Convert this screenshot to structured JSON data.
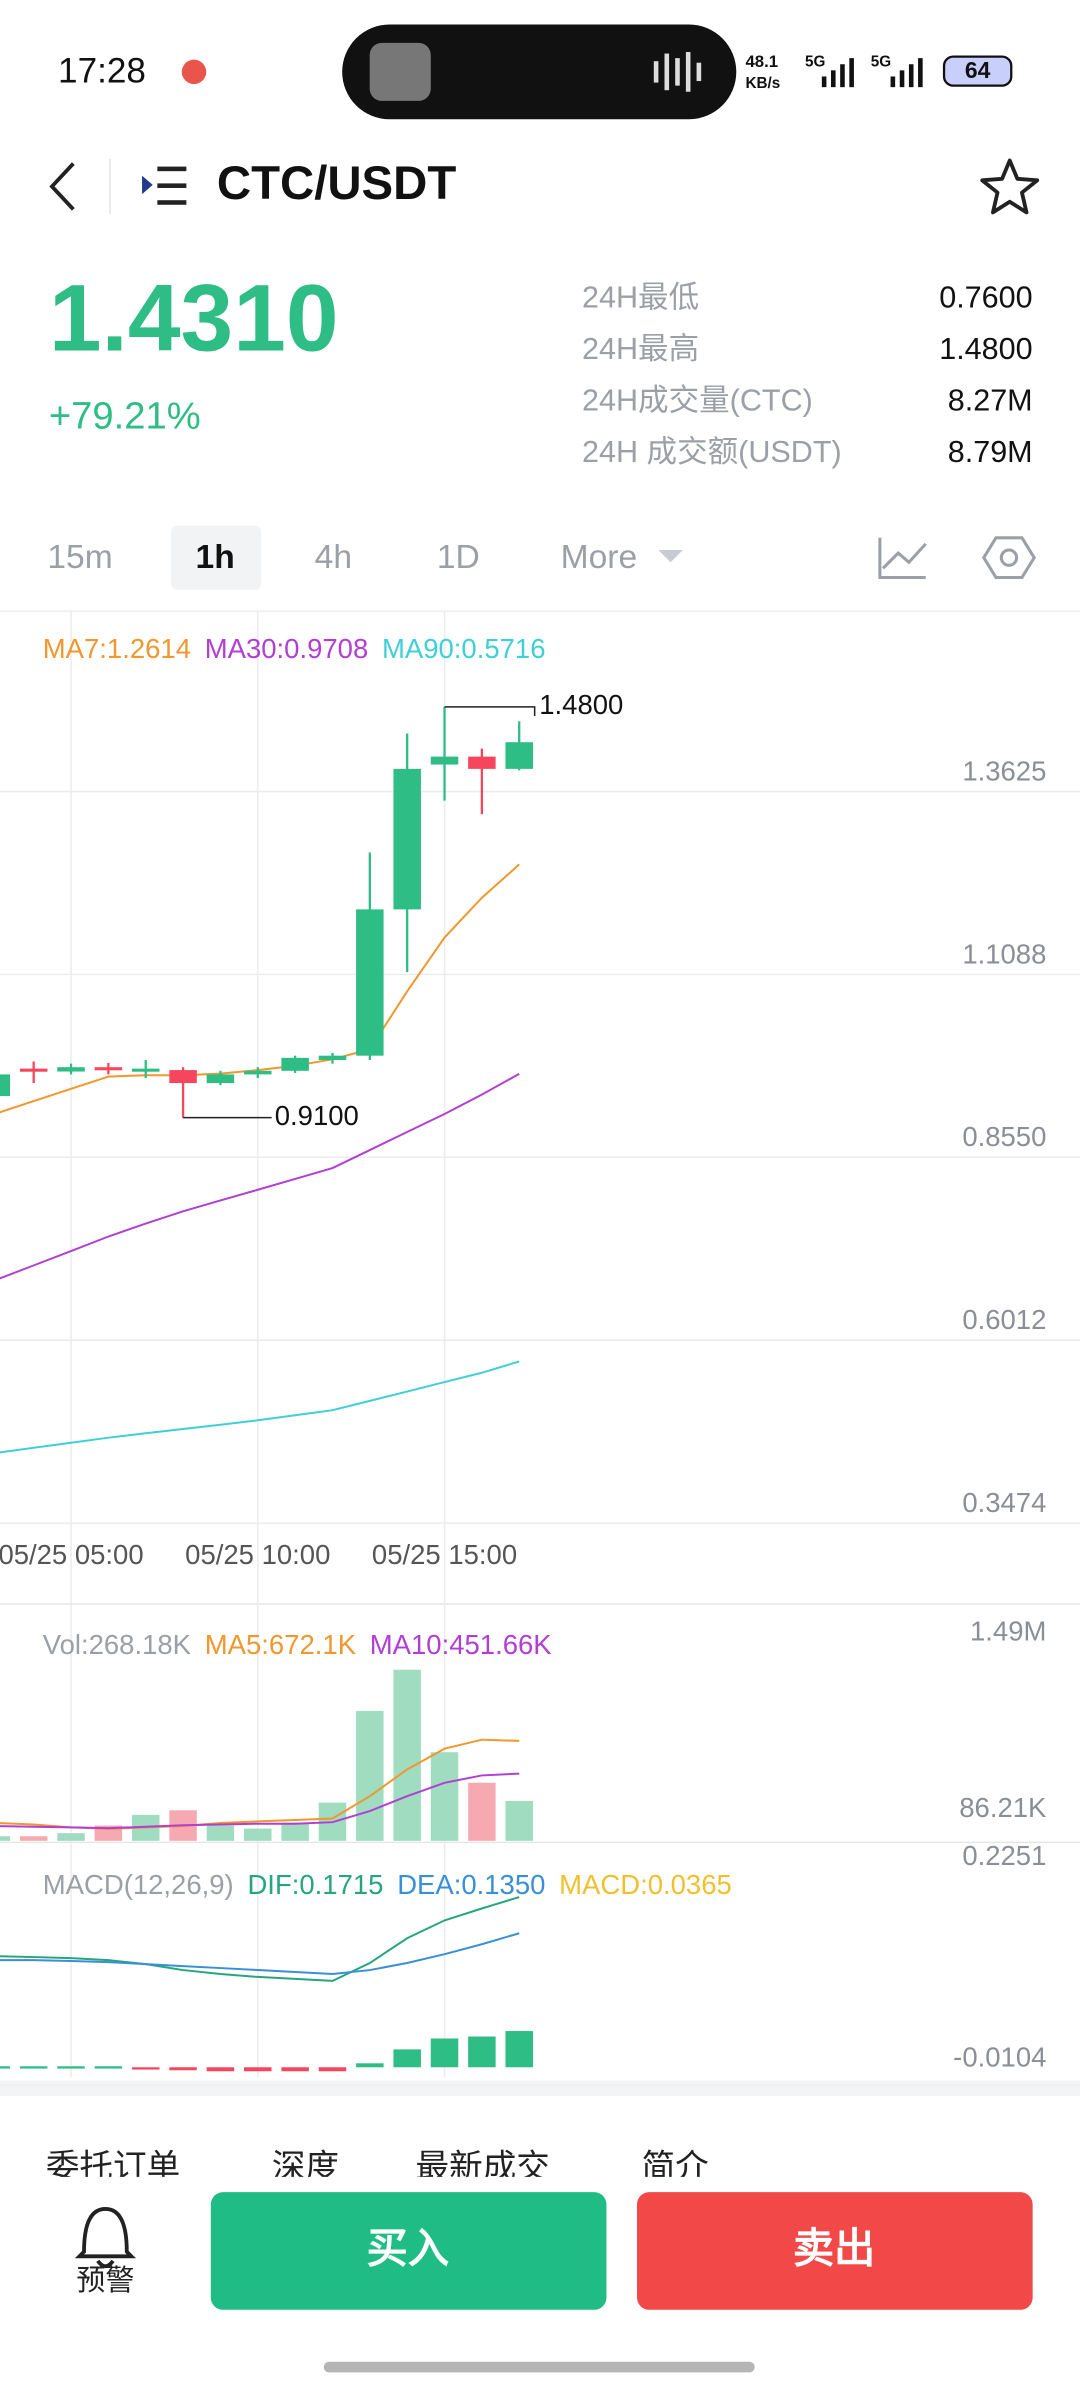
{
  "status_bar": {
    "time": "17:28",
    "speed": "48.1",
    "speed_unit": "KB/s",
    "network_1": "5G",
    "network_2": "5G",
    "battery": "64"
  },
  "header": {
    "pair": "CTC/USDT"
  },
  "ticker": {
    "price": "1.4310",
    "change": "+79.21%",
    "stats": [
      [
        "24H最低",
        "0.7600"
      ],
      [
        "24H最高",
        "1.4800"
      ],
      [
        "24H成交量(CTC)",
        "8.27M"
      ],
      [
        "24H 成交额(USDT)",
        "8.79M"
      ]
    ]
  },
  "timeframes": [
    "15m",
    "1h",
    "4h",
    "1D",
    "More"
  ],
  "chart_data": [
    {
      "type": "candlestick",
      "categories": [
        null,
        null,
        "05/25 05:00",
        null,
        null,
        null,
        null,
        "05/25 10:00",
        null,
        null,
        null,
        null,
        "05/25 15:00",
        null,
        null
      ],
      "open": [
        0.94,
        0.978,
        0.974,
        0.98,
        0.975,
        0.976,
        0.958,
        0.97,
        0.975,
        0.99,
        0.996,
        1.199,
        1.4,
        1.411,
        1.394
      ],
      "high": [
        0.975,
        0.988,
        0.985,
        0.986,
        0.99,
        0.98,
        0.975,
        0.98,
        0.996,
        1.0,
        1.278,
        1.443,
        1.48,
        1.422,
        1.46
      ],
      "low": [
        0.935,
        0.958,
        0.97,
        0.97,
        0.965,
        0.91,
        0.955,
        0.965,
        0.972,
        0.985,
        0.99,
        1.112,
        1.35,
        1.331,
        1.392
      ],
      "close": [
        0.97,
        0.974,
        0.98,
        0.976,
        0.978,
        0.958,
        0.97,
        0.975,
        0.993,
        0.996,
        1.199,
        1.394,
        1.411,
        1.394,
        1.431
      ],
      "up_color": "#2ebd85",
      "down_color": "#f6465d",
      "high_label": "1.4800",
      "low_label": "0.9100",
      "series": [
        {
          "name": "MA7:1.2614",
          "color": "#f0972e",
          "values": [
            0.916,
            0.933,
            0.95,
            0.967,
            0.969,
            0.969,
            0.971,
            0.976,
            0.982,
            0.991,
            1.005,
            1.085,
            1.16,
            1.215,
            1.2614
          ]
        },
        {
          "name": "MA30:0.9708",
          "color": "#b23fd4",
          "values": [
            0.685,
            0.705,
            0.725,
            0.745,
            0.763,
            0.78,
            0.795,
            0.81,
            0.825,
            0.84,
            0.865,
            0.89,
            0.915,
            0.942,
            0.9708
          ]
        },
        {
          "name": "MA90:0.5716",
          "color": "#3fcfd6",
          "values": [
            0.445,
            0.452,
            0.459,
            0.466,
            0.472,
            0.478,
            0.484,
            0.49,
            0.497,
            0.504,
            0.517,
            0.53,
            0.543,
            0.556,
            0.5716
          ]
        }
      ],
      "ylim": [
        0.3474,
        1.6129
      ],
      "yticks": [
        1.3625,
        1.1088,
        {
          "value": 0.855,
          "label": "0.8550"
        },
        0.6012,
        0.3474
      ],
      "grid": true
    },
    {
      "type": "bar",
      "title": "Vol:268.18K",
      "values": [
        30800,
        30800,
        51400,
        102800,
        174700,
        205500,
        102800,
        82200,
        123300,
        256900,
        873400,
        1151000,
        596000,
        390500,
        268180
      ],
      "bar_colors": [
        "#9fdcc0",
        "#f7a9b2",
        "#9fdcc0",
        "#f7a9b2",
        "#9fdcc0",
        "#f7a9b2",
        "#9fdcc0",
        "#9fdcc0",
        "#9fdcc0",
        "#9fdcc0",
        "#9fdcc0",
        "#9fdcc0",
        "#9fdcc0",
        "#f7a9b2",
        "#9fdcc0"
      ],
      "series": [
        {
          "name": "MA5:672.1K",
          "color": "#f0972e",
          "values": [
            120000,
            110000,
            90000,
            80000,
            90000,
            100000,
            120000,
            130000,
            140000,
            150000,
            300000,
            480000,
            620000,
            680000,
            672100
          ]
        },
        {
          "name": "MA10:451.66K",
          "color": "#b23fd4",
          "values": [
            100000,
            95000,
            90000,
            85000,
            95000,
            105000,
            110000,
            115000,
            115000,
            125000,
            200000,
            300000,
            390000,
            440000,
            451660
          ]
        }
      ],
      "ylim": [
        0,
        1490000
      ],
      "yticks": [
        {
          "value": 1490000,
          "label": "1.49M"
        },
        {
          "value": 86210,
          "label": "86.21K"
        }
      ]
    },
    {
      "type": "bar",
      "title": "MACD(12,26,9)",
      "values": [
        0.001,
        0.001,
        0.001,
        0.001,
        -0.002,
        -0.003,
        -0.004,
        -0.004,
        -0.004,
        -0.004,
        0.004,
        0.018,
        0.029,
        0.031,
        0.0365
      ],
      "up_color": "#2ebd85",
      "down_color": "#f6465d",
      "series": [
        {
          "name": "DIF:0.1715",
          "color": "#26a67a",
          "values": [
            0.112,
            0.111,
            0.11,
            0.108,
            0.104,
            0.098,
            0.094,
            0.091,
            0.089,
            0.087,
            0.105,
            0.13,
            0.148,
            0.16,
            0.1715
          ]
        },
        {
          "name": "DEA:0.1350",
          "color": "#3a8fd8",
          "values": [
            0.108,
            0.108,
            0.107,
            0.106,
            0.104,
            0.102,
            0.1,
            0.098,
            0.096,
            0.094,
            0.098,
            0.105,
            0.114,
            0.124,
            0.135
          ]
        },
        {
          "name": "MACD:0.0365",
          "color": "#f0c030",
          "values": []
        }
      ],
      "ylim": [
        -0.0104,
        0.2251
      ],
      "yticks": [
        0.2251,
        -0.0104
      ]
    }
  ],
  "tabs": [
    "委托订单",
    "深度",
    "最新成交",
    "简介"
  ],
  "footer": {
    "alert": "预警",
    "buy": "买入",
    "sell": "卖出"
  }
}
